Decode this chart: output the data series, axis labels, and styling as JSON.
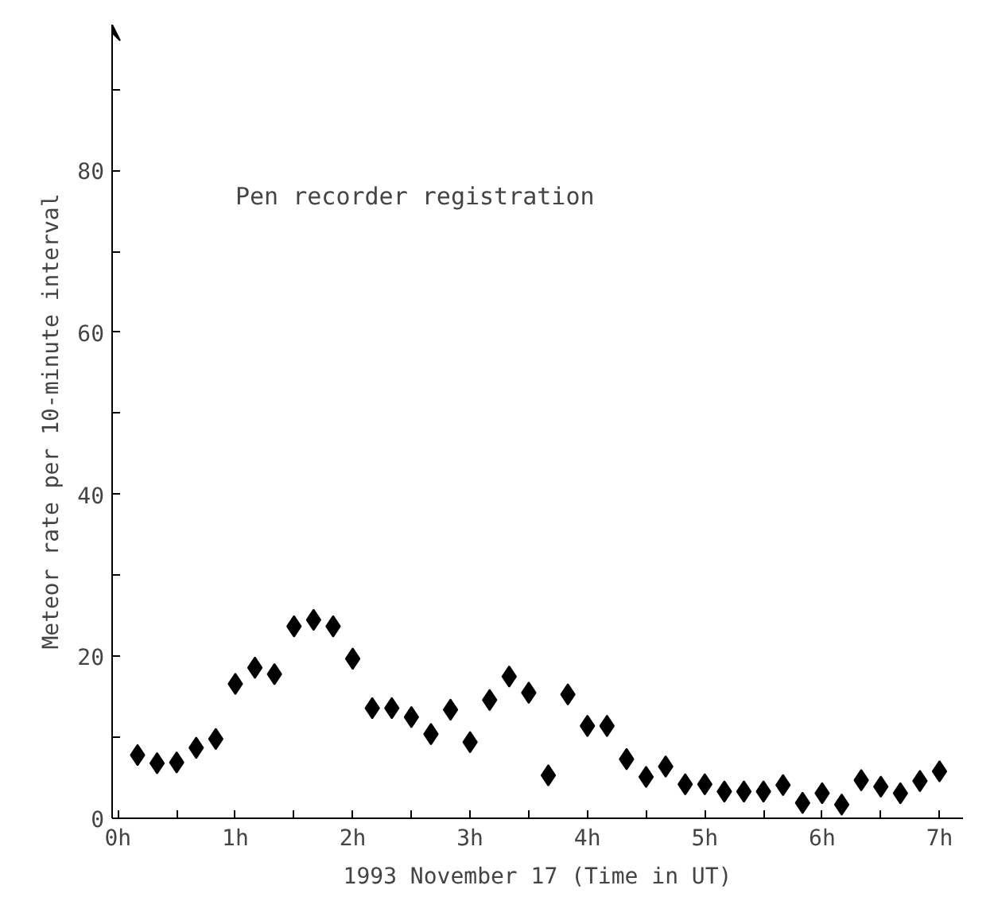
{
  "chart_data": {
    "type": "scatter",
    "xlabel": "1993 November 17 (Time in UT)",
    "ylabel": "Meteor rate per 10-minute interval",
    "annotations": [
      "Pen recorder registration"
    ],
    "x": [
      0.1667,
      0.3333,
      0.5,
      0.6667,
      0.8333,
      1,
      1.1667,
      1.3333,
      1.5,
      1.6667,
      1.8333,
      2,
      2.1667,
      2.3333,
      2.5,
      2.6667,
      2.8333,
      3,
      3.1667,
      3.3333,
      3.5,
      3.6667,
      3.8333,
      4,
      4.1667,
      4.3333,
      4.5,
      4.6667,
      4.8333,
      5,
      5.1667,
      5.3333,
      5.5,
      5.6667,
      5.8333,
      6,
      6.1667,
      6.3333,
      6.5,
      6.6667,
      6.8333,
      7
    ],
    "values": [
      7.8,
      6.8,
      6.9,
      8.7,
      9.8,
      16.6,
      18.6,
      17.8,
      23.7,
      24.5,
      23.7,
      19.7,
      13.6,
      13.6,
      12.5,
      10.4,
      13.4,
      9.4,
      14.6,
      17.5,
      15.5,
      5.3,
      15.3,
      11.4,
      11.4,
      7.3,
      5.1,
      6.4,
      4.2,
      4.2,
      3.3,
      3.3,
      3.3,
      4.1,
      1.9,
      3.1,
      1.7,
      4.7,
      3.9,
      3.1,
      4.6,
      5.8
    ],
    "color": "#000000",
    "marker": "diamond",
    "xlim": [
      -0.05,
      7.2
    ],
    "ylim": [
      0,
      98
    ],
    "xticks": [
      {
        "value": 0,
        "label": "0h"
      },
      {
        "value": 0.5,
        "label": null
      },
      {
        "value": 1,
        "label": "1h"
      },
      {
        "value": 1.5,
        "label": null
      },
      {
        "value": 2,
        "label": "2h"
      },
      {
        "value": 2.5,
        "label": null
      },
      {
        "value": 3,
        "label": "3h"
      },
      {
        "value": 3.5,
        "label": null
      },
      {
        "value": 4,
        "label": "4h"
      },
      {
        "value": 4.5,
        "label": null
      },
      {
        "value": 5,
        "label": "5h"
      },
      {
        "value": 5.5,
        "label": null
      },
      {
        "value": 6,
        "label": "6h"
      },
      {
        "value": 6.5,
        "label": null
      },
      {
        "value": 7,
        "label": "7h"
      }
    ],
    "yticks": [
      0,
      {
        "value": 10,
        "label": null
      },
      20,
      {
        "value": 30,
        "label": null
      },
      40,
      {
        "value": 50,
        "label": null
      },
      60,
      {
        "value": 70,
        "label": null
      },
      80,
      {
        "value": 90,
        "label": null
      }
    ],
    "grid": false,
    "legend": false
  }
}
